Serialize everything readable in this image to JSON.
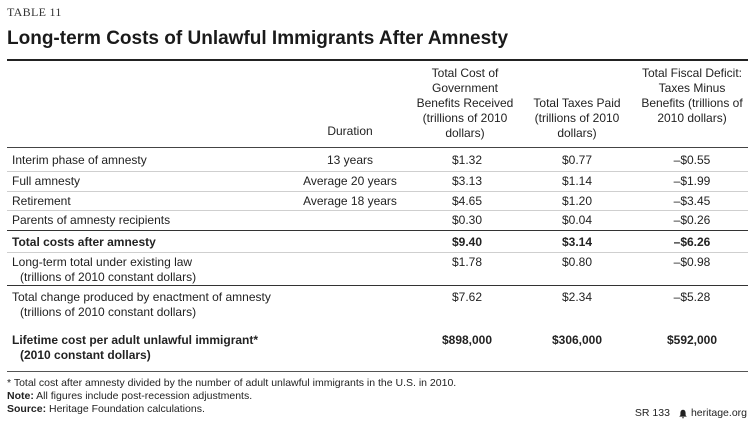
{
  "table_label": "TABLE 11",
  "title": "Long-term Costs of Unlawful Immigrants After Amnesty",
  "headers": {
    "duration": "Duration",
    "benefits": "Total Cost of Government Benefits Received (trillions of 2010 dollars)",
    "taxes": "Total Taxes Paid (trillions of 2010 dollars)",
    "deficit": "Total Fiscal Deficit: Taxes Minus Benefits (trillions of 2010 dollars)"
  },
  "rows": [
    {
      "label": "Interim phase of amnesty",
      "duration": "13 years",
      "benefits": "$1.32",
      "taxes": "$0.77",
      "deficit": "–$0.55"
    },
    {
      "label": "Full amnesty",
      "duration": "Average 20 years",
      "benefits": "$3.13",
      "taxes": "$1.14",
      "deficit": "–$1.99"
    },
    {
      "label": "Retirement",
      "duration": "Average 18 years",
      "benefits": "$4.65",
      "taxes": "$1.20",
      "deficit": "–$3.45"
    },
    {
      "label": "Parents of amnesty recipients",
      "duration": "",
      "benefits": "$0.30",
      "taxes": "$0.04",
      "deficit": "–$0.26"
    },
    {
      "label": "Total costs after amnesty",
      "duration": "",
      "benefits": "$9.40",
      "taxes": "$3.14",
      "deficit": "–$6.26"
    },
    {
      "label": "Long-term total under existing law",
      "sublabel": "(trillions of 2010 constant dollars)",
      "duration": "",
      "benefits": "$1.78",
      "taxes": "$0.80",
      "deficit": "–$0.98"
    },
    {
      "label": "Total change produced by enactment of amnesty",
      "sublabel": "(trillions of 2010 constant dollars)",
      "duration": "",
      "benefits": "$7.62",
      "taxes": "$2.34",
      "deficit": "–$5.28"
    },
    {
      "label": "Lifetime cost per adult unlawful immigrant*",
      "sublabel": "(2010 constant dollars)",
      "duration": "",
      "benefits": "$898,000",
      "taxes": "$306,000",
      "deficit": "$592,000"
    }
  ],
  "footnotes": {
    "asterisk": "* Total cost after amnesty divided by the number of adult unlawful immigrants in the U.S. in 2010.",
    "note_label": "Note:",
    "note_text": " All figures include post-recession adjustments.",
    "source_label": "Source:",
    "source_text": " Heritage Foundation calculations."
  },
  "report_code": "SR 133",
  "site": "heritage.org"
}
